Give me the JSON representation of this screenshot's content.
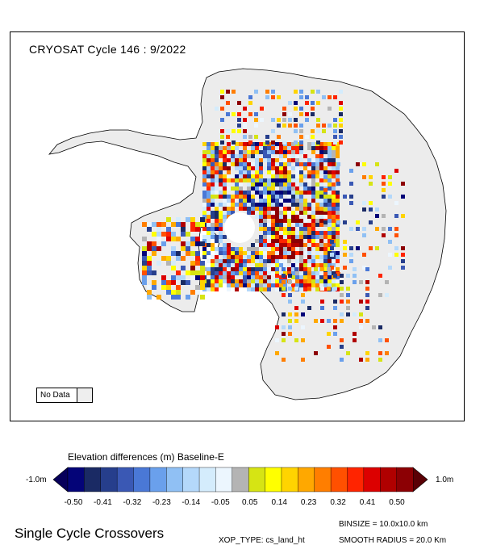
{
  "map": {
    "title": "CRYOSAT Cycle 146 : 9/2022",
    "no_data_label": "No Data",
    "no_data_color": "#eeeeee",
    "land_color": "#ececec"
  },
  "colorbar": {
    "title": "Elevation differences (m) Baseline-E",
    "min_label": "-1.0m",
    "max_label": "1.0m",
    "low_arrow_color": "#07005a",
    "high_arrow_color": "#5a0005",
    "colors": [
      "#040478",
      "#1a2a64",
      "#263e8c",
      "#3a58b4",
      "#4a78d6",
      "#6aa0ec",
      "#90c0f4",
      "#b4d8fa",
      "#d4ecfc",
      "#ecf6fe",
      "#b4b4b4",
      "#d6e414",
      "#ffff00",
      "#ffd400",
      "#ffa800",
      "#ff7e00",
      "#ff5000",
      "#ff2400",
      "#dc0000",
      "#b00000",
      "#8c0004"
    ],
    "tick_labels": [
      "-0.50",
      "-0.41",
      "-0.32",
      "-0.23",
      "-0.14",
      "-0.05",
      "0.05",
      "0.14",
      "0.23",
      "0.32",
      "0.41",
      "0.50"
    ]
  },
  "footer": {
    "left": "Single Cycle Crossovers",
    "binsize": "BINSIZE = 10.0x10.0 km",
    "xop_type": "XOP_TYPE: cs_land_ht",
    "smooth_radius": "SMOOTH RADIUS =  20.0 Km"
  }
}
